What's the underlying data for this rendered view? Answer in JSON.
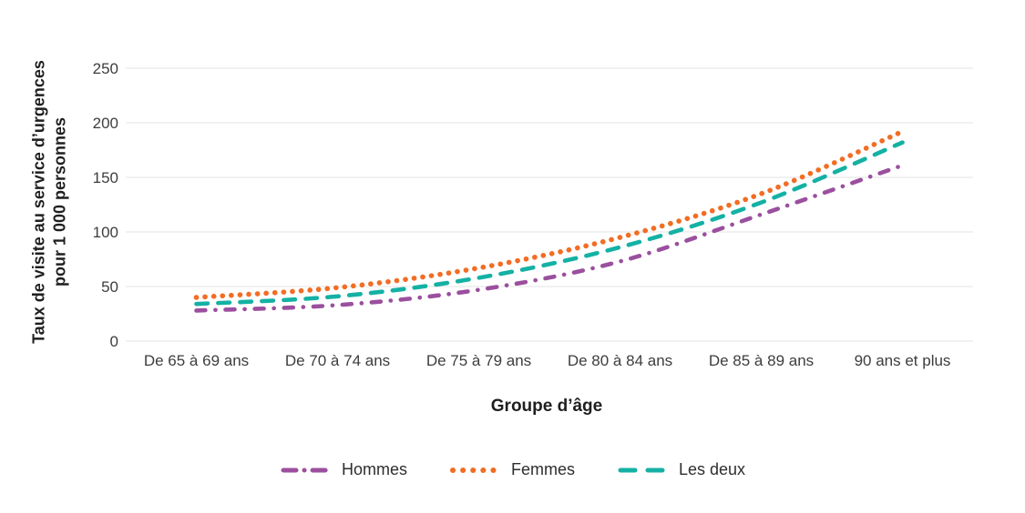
{
  "chart_data": {
    "type": "line",
    "title": "",
    "xlabel": "Groupe d’âge",
    "ylabel": "Taux de visite au service d’urgences pour 1 000 personnes",
    "ylabel_lines": [
      "Taux de visite au service d’urgences",
      "pour 1 000 personnes"
    ],
    "categories": [
      "De 65 à 69 ans",
      "De 70 à 74 ans",
      "De 75 à 79 ans",
      "De 80 à 84 ans",
      "De 85 à 89 ans",
      "90 ans et plus"
    ],
    "series": [
      {
        "name": "Hommes",
        "color": "#9B4F9E",
        "line_style": "dash-dot",
        "values": [
          28,
          33,
          47,
          73,
          116,
          161
        ]
      },
      {
        "name": "Femmes",
        "color": "#F26D24",
        "line_style": "dotted",
        "values": [
          40,
          49,
          67,
          95,
          135,
          192
        ]
      },
      {
        "name": "Les deux",
        "color": "#14B1A4",
        "line_style": "dashed",
        "values": [
          34,
          41,
          58,
          86,
          127,
          182
        ]
      }
    ],
    "ylim": [
      0,
      250
    ],
    "yticks": [
      0,
      50,
      100,
      150,
      200,
      250
    ],
    "grid": "horizontal",
    "grid_color": "#E3E3E3",
    "legend_position": "bottom",
    "curve": "smooth"
  }
}
